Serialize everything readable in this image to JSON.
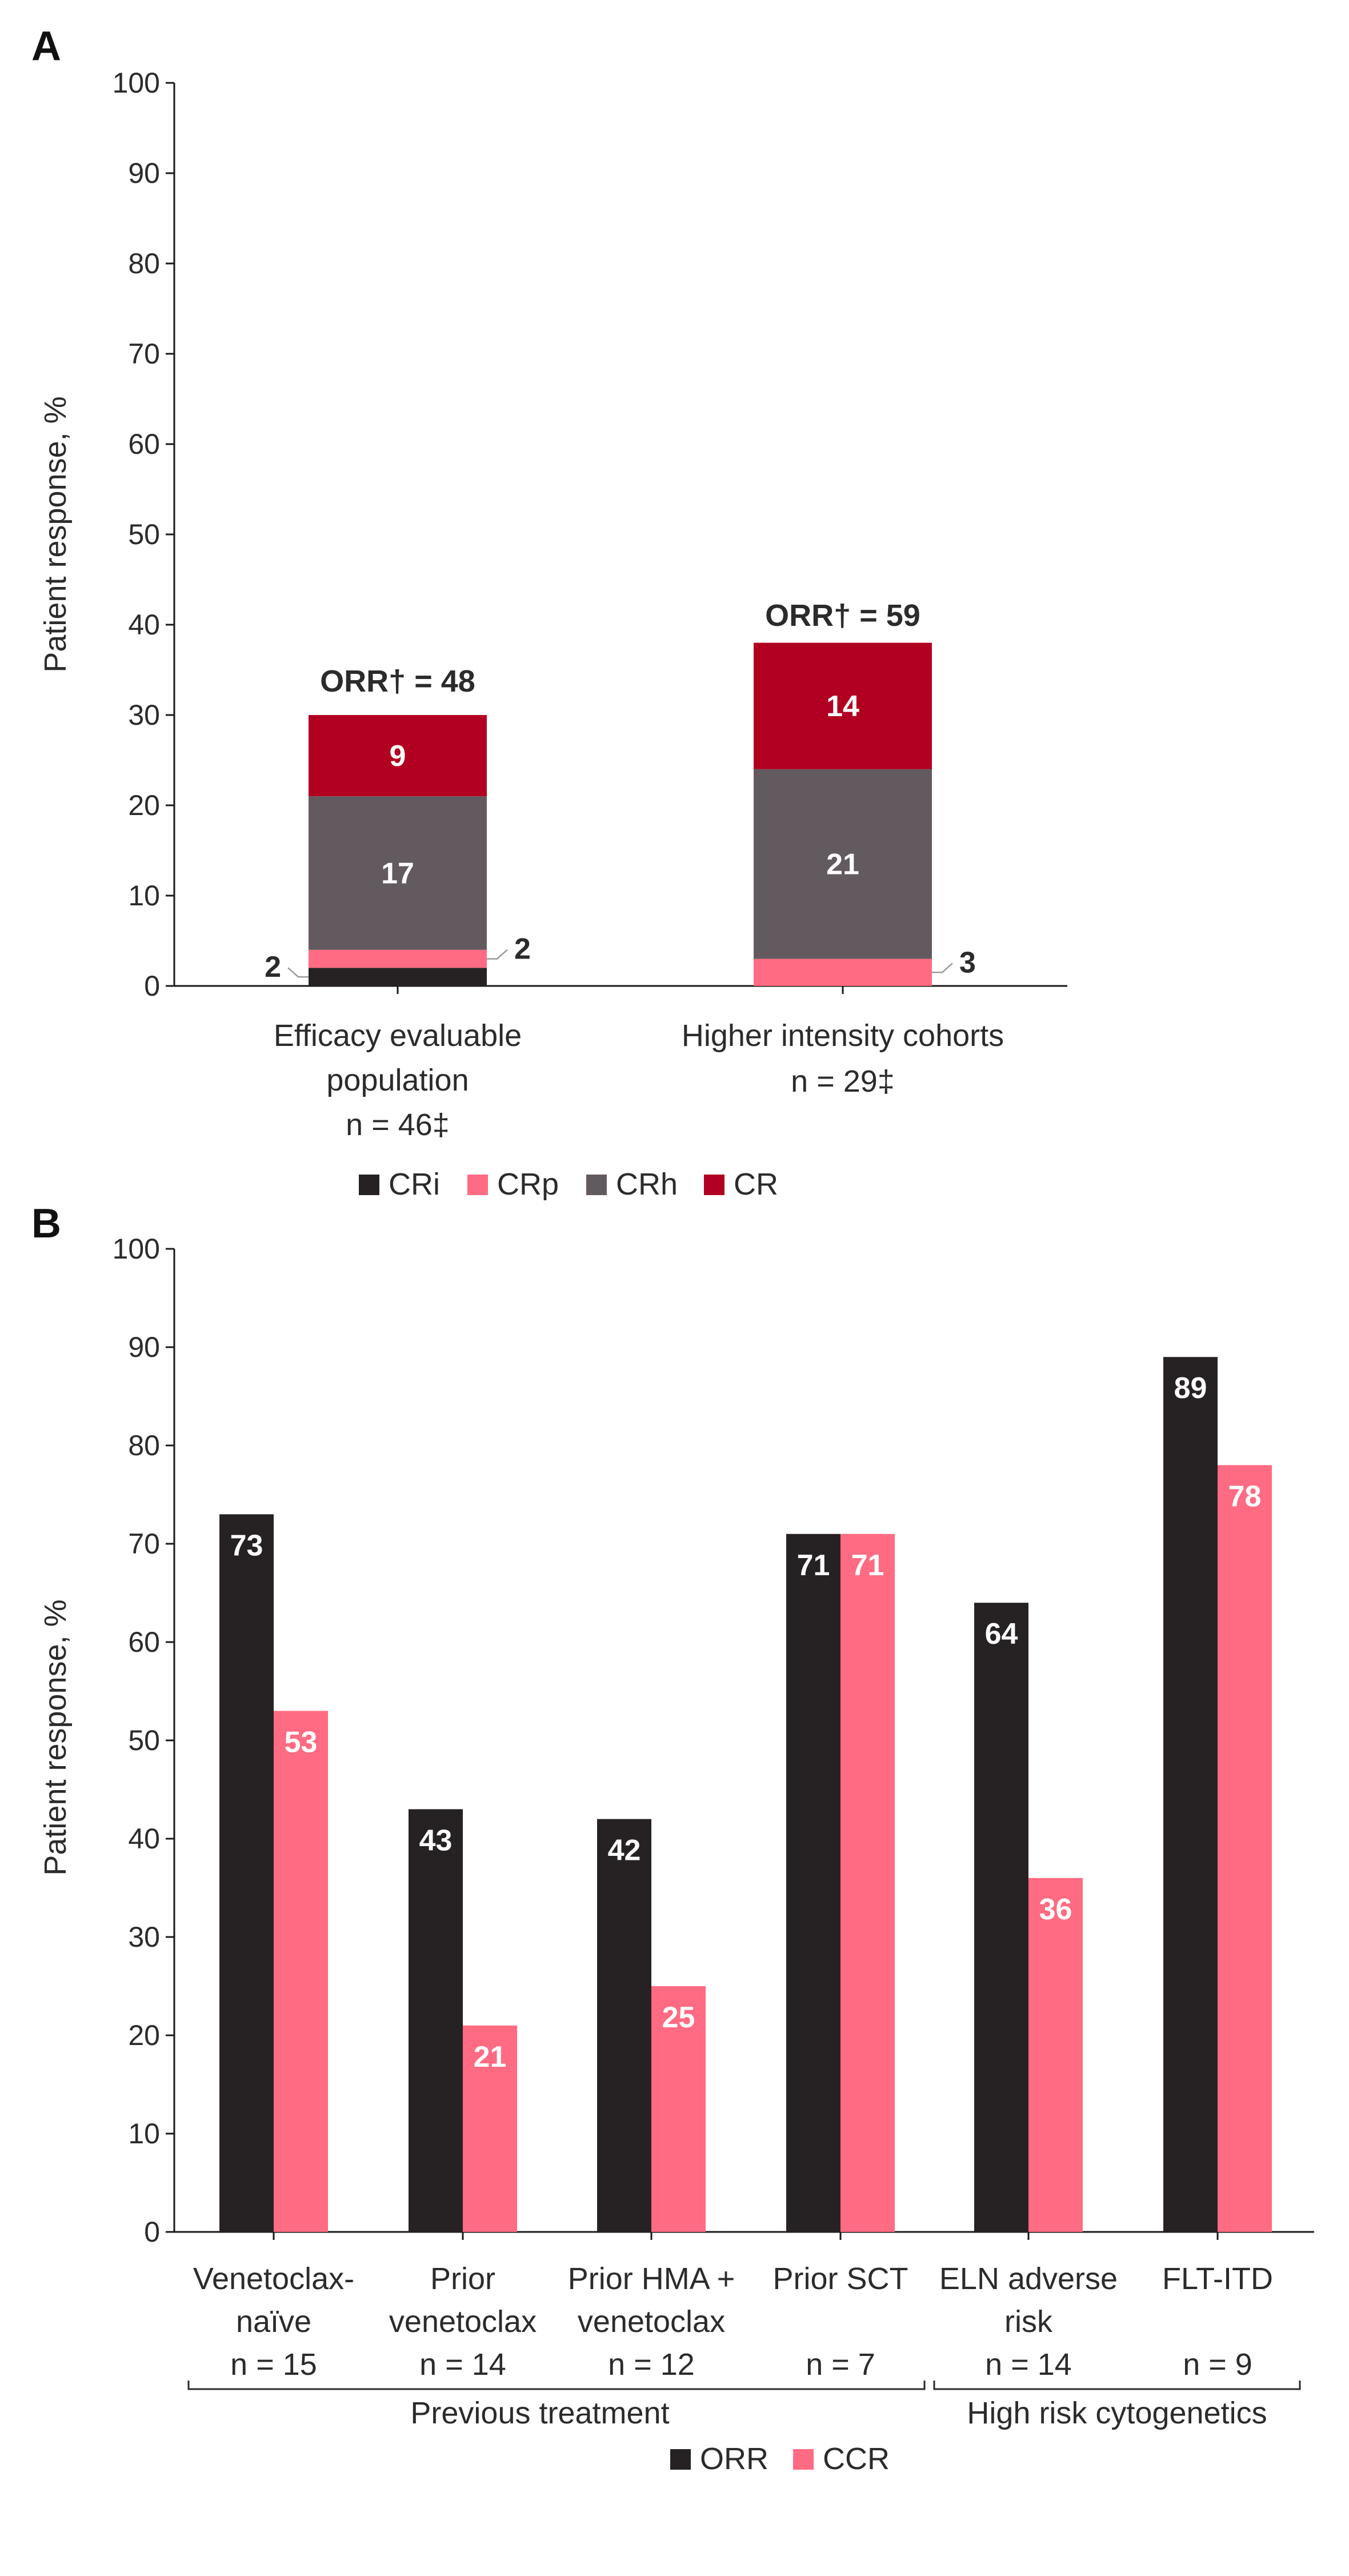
{
  "colors": {
    "CRi": "#262223",
    "CRp": "#ff6b82",
    "CRh": "#635a60",
    "CR": "#b10020",
    "ORR": "#262223",
    "CCR": "#ff6b82"
  },
  "chart_data": [
    {
      "panel": "A",
      "type": "bar",
      "stacked": true,
      "ylabel": "Patient response, %",
      "ylim": [
        0,
        100
      ],
      "yticks": [
        "0",
        "10",
        "20",
        "30",
        "40",
        "50",
        "60",
        "70",
        "80",
        "90",
        "100"
      ],
      "categories": [
        {
          "lines": [
            "Efficacy evaluable",
            "population",
            "n = 46‡"
          ]
        },
        {
          "lines": [
            "Higher intensity cohorts",
            "n = 29‡"
          ]
        }
      ],
      "series": [
        {
          "name": "CRi",
          "values": [
            2,
            0
          ],
          "labels": [
            "2",
            ""
          ]
        },
        {
          "name": "CRp",
          "values": [
            2,
            3
          ],
          "labels": [
            "2",
            "3"
          ]
        },
        {
          "name": "CRh",
          "values": [
            17,
            21
          ],
          "labels": [
            "17",
            "21"
          ]
        },
        {
          "name": "CR",
          "values": [
            9,
            14
          ],
          "labels": [
            "9",
            "14"
          ]
        }
      ],
      "annotations": [
        "ORR† = 48",
        "ORR† = 59"
      ],
      "legend": [
        "CRi",
        "CRp",
        "CRh",
        "CR"
      ],
      "legend_position": "bottom"
    },
    {
      "panel": "B",
      "type": "bar",
      "stacked": false,
      "ylabel": "Patient response, %",
      "ylim": [
        0,
        100
      ],
      "yticks": [
        "0",
        "10",
        "20",
        "30",
        "40",
        "50",
        "60",
        "70",
        "80",
        "90",
        "100"
      ],
      "categories": [
        {
          "lines": [
            "Venetoclax-",
            "naïve",
            "n = 15"
          ]
        },
        {
          "lines": [
            "Prior",
            "venetoclax",
            "n = 14"
          ]
        },
        {
          "lines": [
            "Prior HMA +",
            "venetoclax",
            "n = 12"
          ]
        },
        {
          "lines": [
            "Prior SCT",
            "",
            "n = 7"
          ]
        },
        {
          "lines": [
            "ELN adverse",
            "risk",
            "n = 14"
          ]
        },
        {
          "lines": [
            "FLT-ITD",
            "",
            "n = 9"
          ]
        }
      ],
      "series": [
        {
          "name": "ORR",
          "values": [
            73,
            43,
            42,
            71,
            64,
            89
          ]
        },
        {
          "name": "CCR",
          "values": [
            53,
            21,
            25,
            71,
            36,
            78
          ]
        }
      ],
      "groups": [
        {
          "label": "Previous treatment",
          "from": 0,
          "to": 3
        },
        {
          "label": "High risk cytogenetics",
          "from": 4,
          "to": 5
        }
      ],
      "legend": [
        "ORR",
        "CCR"
      ],
      "legend_position": "bottom"
    }
  ]
}
